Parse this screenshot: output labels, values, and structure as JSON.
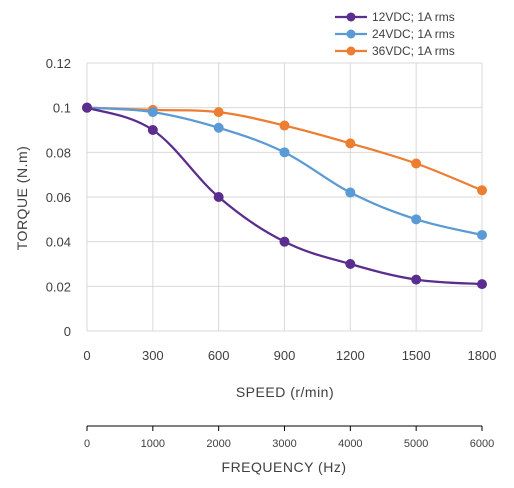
{
  "chart_data": {
    "type": "line",
    "x": [
      0,
      300,
      600,
      900,
      1200,
      1500,
      1800
    ],
    "series": [
      {
        "name": "12VDC; 1A rms",
        "color": "#5b2d8e",
        "values": [
          0.1,
          0.09,
          0.06,
          0.04,
          0.03,
          0.023,
          0.021
        ]
      },
      {
        "name": "24VDC; 1A rms",
        "color": "#5b9bd5",
        "values": [
          0.1,
          0.098,
          0.091,
          0.08,
          0.062,
          0.05,
          0.043
        ]
      },
      {
        "name": "36VDC; 1A rms",
        "color": "#ed7d31",
        "values": [
          0.1,
          0.099,
          0.098,
          0.092,
          0.084,
          0.075,
          0.063
        ]
      }
    ],
    "xlabel": "SPEED (r/min)",
    "ylabel": "TORQUE (N.m)",
    "xlim": [
      0,
      1800
    ],
    "ylim": [
      0,
      0.12
    ],
    "x_ticks": [
      "0",
      "300",
      "600",
      "900",
      "1200",
      "1500",
      "1800"
    ],
    "y_ticks": [
      "0",
      "0.02",
      "0.04",
      "0.06",
      "0.08",
      "0.1",
      "0.12"
    ],
    "secondary_axis": {
      "label": "FREQUENCY (Hz)",
      "ticks": [
        "0",
        "1000",
        "2000",
        "3000",
        "4000",
        "5000",
        "6000"
      ]
    },
    "grid": true,
    "legend_position": "top-right"
  }
}
